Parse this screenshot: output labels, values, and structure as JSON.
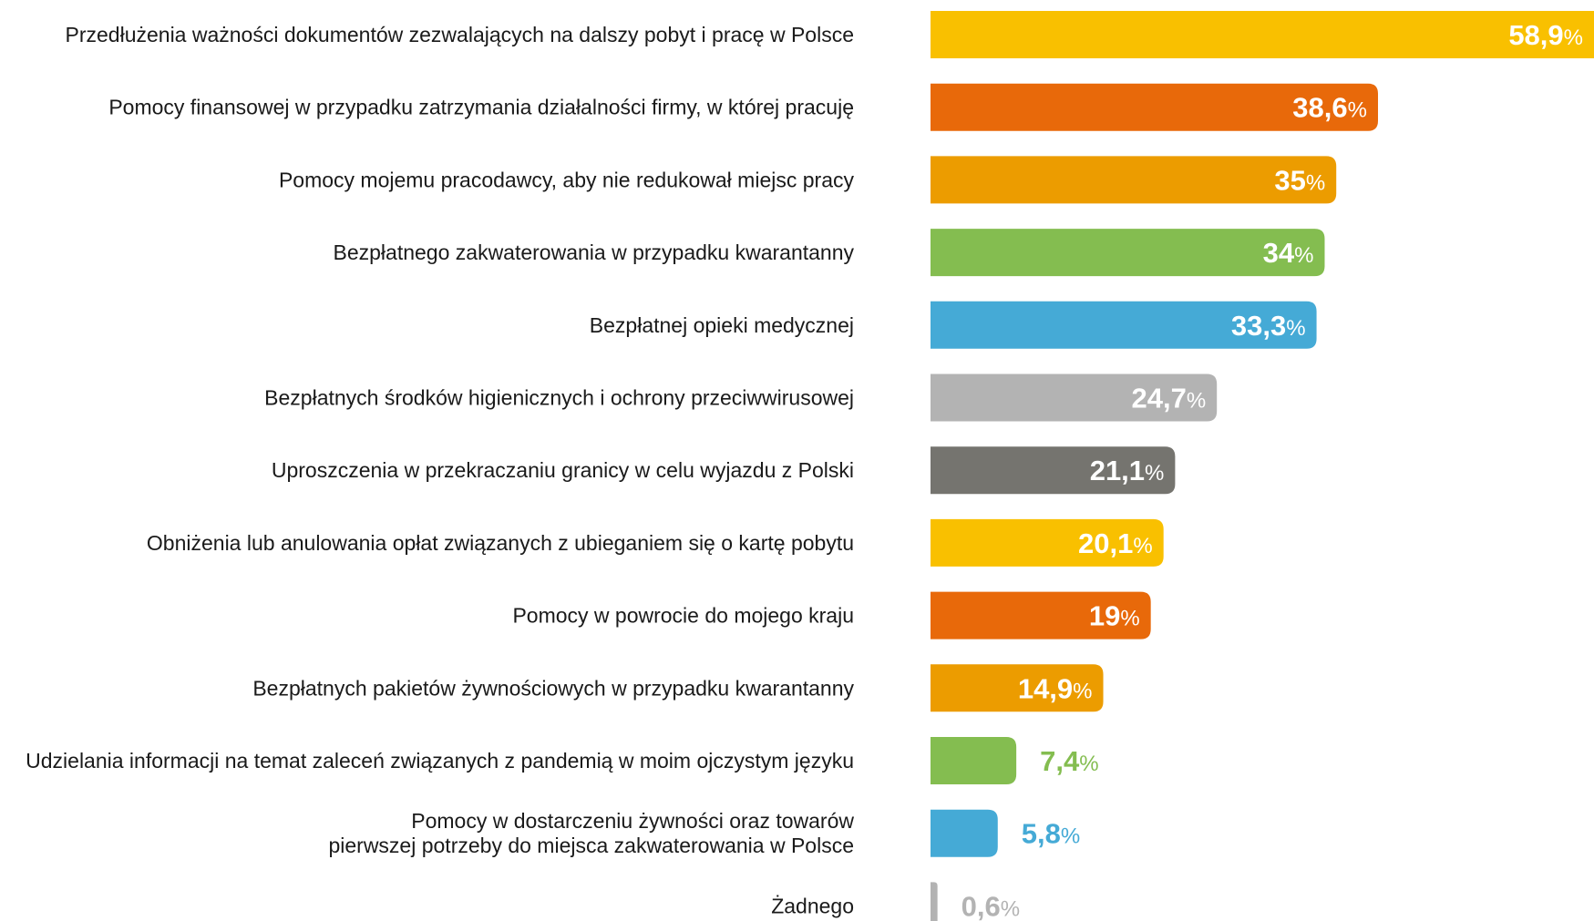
{
  "chart_data": {
    "type": "bar",
    "orientation": "horizontal",
    "categories": [
      "Przedłużenia ważności dokumentów zezwalających na dalszy pobyt i pracę w Polsce",
      "Pomocy finansowej w przypadku zatrzymania działalności firmy, w której pracuję",
      "Pomocy mojemu pracodawcy, aby nie redukował miejsc pracy",
      "Bezpłatnego zakwaterowania w przypadku kwarantanny",
      "Bezpłatnej opieki medycznej",
      "Bezpłatnych środków higienicznych i ochrony przeciwwirusowej",
      "Uproszczenia w przekraczaniu granicy w celu wyjazdu z Polski",
      "Obniżenia lub anulowania opłat związanych z ubieganiem się o kartę pobytu",
      "Pomocy w powrocie do mojego kraju",
      "Bezpłatnych pakietów żywnościowych w przypadku kwarantanny",
      "Udzielania informacji na temat zaleceń związanych z pandemią w moim ojczystym języku",
      "Pomocy w dostarczeniu żywności oraz towarów\npierwszej potrzeby do miejsca zakwaterowania w Polsce",
      "Żadnego"
    ],
    "values": [
      58.9,
      38.6,
      35,
      34,
      33.3,
      24.7,
      21.1,
      20.1,
      19,
      14.9,
      7.4,
      5.8,
      0.6
    ],
    "value_labels": [
      "58,9%",
      "38,6%",
      "35%",
      "34%",
      "33,3%",
      "24,7%",
      "21,1%",
      "20,1%",
      "19%",
      "14,9%",
      "7,4%",
      "5,8%",
      "0,6%"
    ],
    "colors": [
      "#f9c000",
      "#e8690a",
      "#ec9c00",
      "#84bd50",
      "#45aad6",
      "#b3b3b3",
      "#75746f",
      "#f9c000",
      "#e8690a",
      "#ec9c00",
      "#84bd50",
      "#45aad6",
      "#b3b3b3"
    ]
  }
}
